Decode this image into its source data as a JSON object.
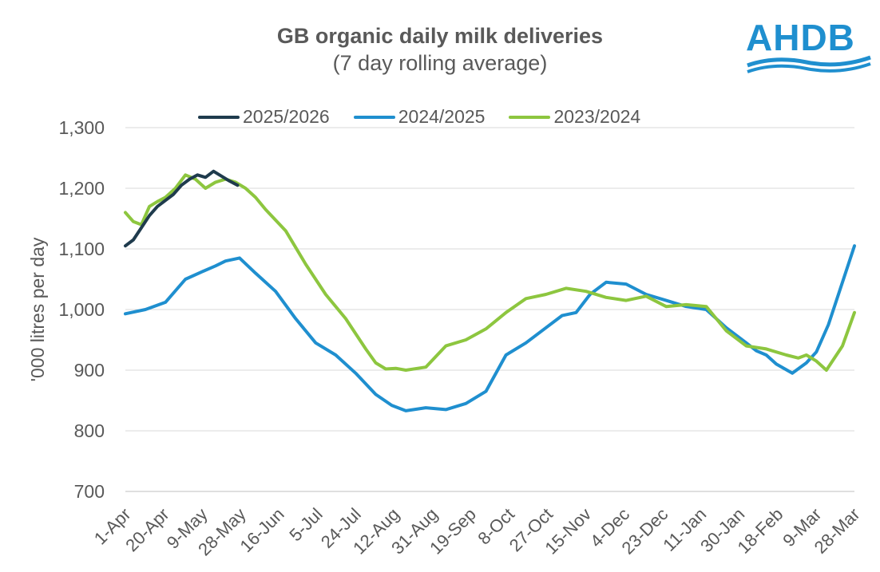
{
  "chart_data": {
    "type": "line",
    "title": "GB organic daily milk deliveries",
    "subtitle": "(7 day rolling average)",
    "ylabel": "'000 litres per day",
    "xlabel": "",
    "ylim": [
      700,
      1300
    ],
    "yticks": [
      "1,300",
      "1,200",
      "1,100",
      "1,000",
      "900",
      "800",
      "700"
    ],
    "ytick_values": [
      1300,
      1200,
      1100,
      1000,
      900,
      800,
      700
    ],
    "xtick_labels": [
      "1-Apr",
      "20-Apr",
      "9-May",
      "28-May",
      "16-Jun",
      "5-Jul",
      "24-Jul",
      "12-Aug",
      "31-Aug",
      "19-Sep",
      "8-Oct",
      "27-Oct",
      "15-Nov",
      "4-Dec",
      "23-Dec",
      "11-Jan",
      "30-Jan",
      "18-Feb",
      "9-Mar",
      "28-Mar"
    ],
    "grid": true,
    "legend_position": "top",
    "series": [
      {
        "name": "2025/2026",
        "color": "#1f3b4d",
        "x": [
          0,
          4,
          8,
          12,
          16,
          20,
          24,
          28,
          32,
          36,
          40,
          44,
          48,
          52,
          56
        ],
        "values": [
          1105,
          1115,
          1135,
          1155,
          1170,
          1180,
          1190,
          1205,
          1215,
          1222,
          1218,
          1228,
          1220,
          1212,
          1205
        ]
      },
      {
        "name": "2024/2025",
        "color": "#1f8fcf",
        "x": [
          0,
          10,
          20,
          30,
          38,
          45,
          50,
          57,
          65,
          75,
          85,
          95,
          105,
          115,
          125,
          133,
          140,
          150,
          160,
          170,
          180,
          190,
          200,
          210,
          218,
          225,
          232,
          240,
          250,
          260,
          270,
          280,
          290,
          300,
          310,
          315,
          320,
          325,
          333,
          340,
          345,
          351,
          358,
          364
        ],
        "values": [
          993,
          1000,
          1012,
          1050,
          1062,
          1072,
          1080,
          1085,
          1060,
          1030,
          985,
          945,
          925,
          895,
          860,
          842,
          833,
          838,
          835,
          845,
          865,
          925,
          945,
          970,
          990,
          995,
          1025,
          1045,
          1042,
          1025,
          1015,
          1005,
          1000,
          970,
          945,
          932,
          925,
          910,
          895,
          912,
          930,
          975,
          1045,
          1105
        ]
      },
      {
        "name": "2023/2024",
        "color": "#8dc63f",
        "x": [
          0,
          4,
          8,
          12,
          16,
          20,
          25,
          30,
          35,
          40,
          45,
          50,
          55,
          60,
          65,
          70,
          80,
          90,
          100,
          110,
          120,
          125,
          130,
          135,
          140,
          150,
          160,
          170,
          180,
          190,
          200,
          210,
          220,
          230,
          240,
          250,
          260,
          270,
          280,
          290,
          300,
          310,
          320,
          330,
          336,
          340,
          345,
          350,
          358,
          364
        ],
        "values": [
          1160,
          1145,
          1140,
          1170,
          1178,
          1185,
          1200,
          1222,
          1215,
          1200,
          1210,
          1215,
          1210,
          1200,
          1185,
          1165,
          1130,
          1075,
          1025,
          985,
          935,
          912,
          902,
          903,
          900,
          905,
          940,
          950,
          968,
          995,
          1018,
          1025,
          1035,
          1030,
          1020,
          1015,
          1022,
          1005,
          1008,
          1005,
          965,
          940,
          935,
          925,
          920,
          925,
          915,
          900,
          940,
          995
        ]
      }
    ]
  },
  "logo": {
    "text": "AHDB"
  }
}
